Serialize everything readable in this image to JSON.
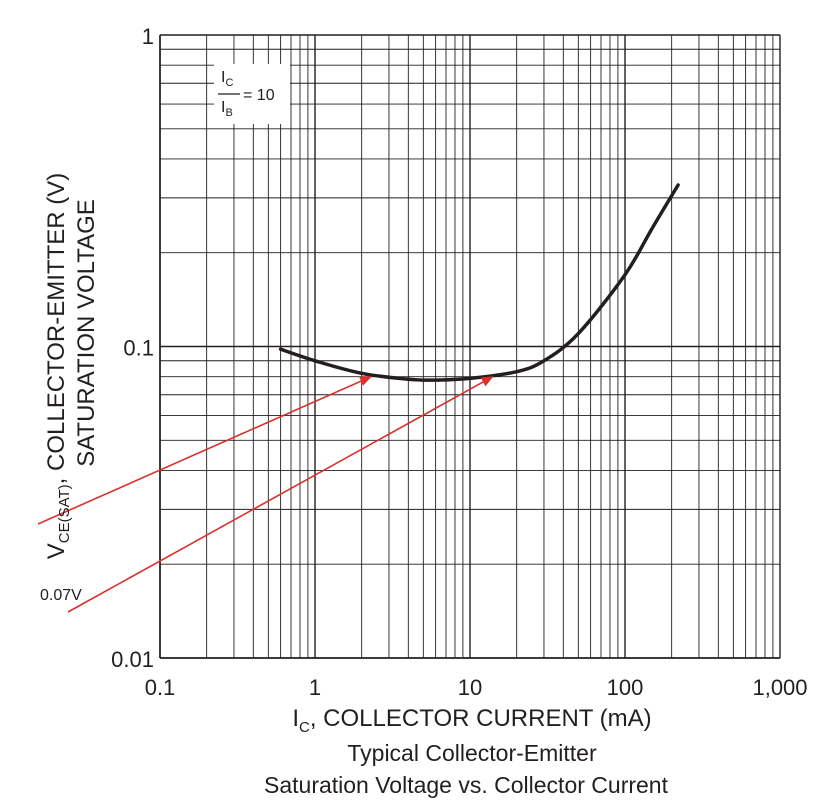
{
  "chart_data": {
    "type": "line",
    "x_scale": "log",
    "y_scale": "log",
    "xlim": [
      0.1,
      1000
    ],
    "ylim": [
      0.01,
      1
    ],
    "grid": true,
    "x_ticks": [
      "0.1",
      "1",
      "10",
      "100",
      "1,000"
    ],
    "y_ticks": [
      "1",
      "0.1",
      "0.01"
    ],
    "xlabel": {
      "main": "I",
      "sub": "C",
      "rest": ", COLLECTOR CURRENT (mA)"
    },
    "ylabel": {
      "line1": "SATURATION VOLTAGE",
      "line2_main": "V",
      "line2_sub": "CE(SAT)",
      "line2_rest": ", COLLECTOR-EMITTER (V)"
    },
    "caption": [
      "Typical Collector-Emitter",
      "Saturation Voltage vs. Collector Current"
    ],
    "condition": {
      "num_main": "I",
      "num_sub": "C",
      "den_main": "I",
      "den_sub": "B",
      "value": "= 10"
    },
    "series": [
      {
        "x": [
          0.6,
          1,
          2,
          4,
          6,
          10,
          20,
          30,
          50,
          100,
          150,
          220
        ],
        "y": [
          0.098,
          0.09,
          0.082,
          0.0785,
          0.078,
          0.079,
          0.083,
          0.09,
          0.11,
          0.17,
          0.24,
          0.33
        ]
      }
    ],
    "annotations": [
      {
        "text": "0.07V",
        "color": "#d9302c",
        "arrows_to": [
          [
            2.3,
            0.08
          ],
          [
            14,
            0.08
          ]
        ]
      }
    ],
    "colors": {
      "curve": "#231f20",
      "grid": "#231f20",
      "arrow": "#d9302c"
    }
  }
}
